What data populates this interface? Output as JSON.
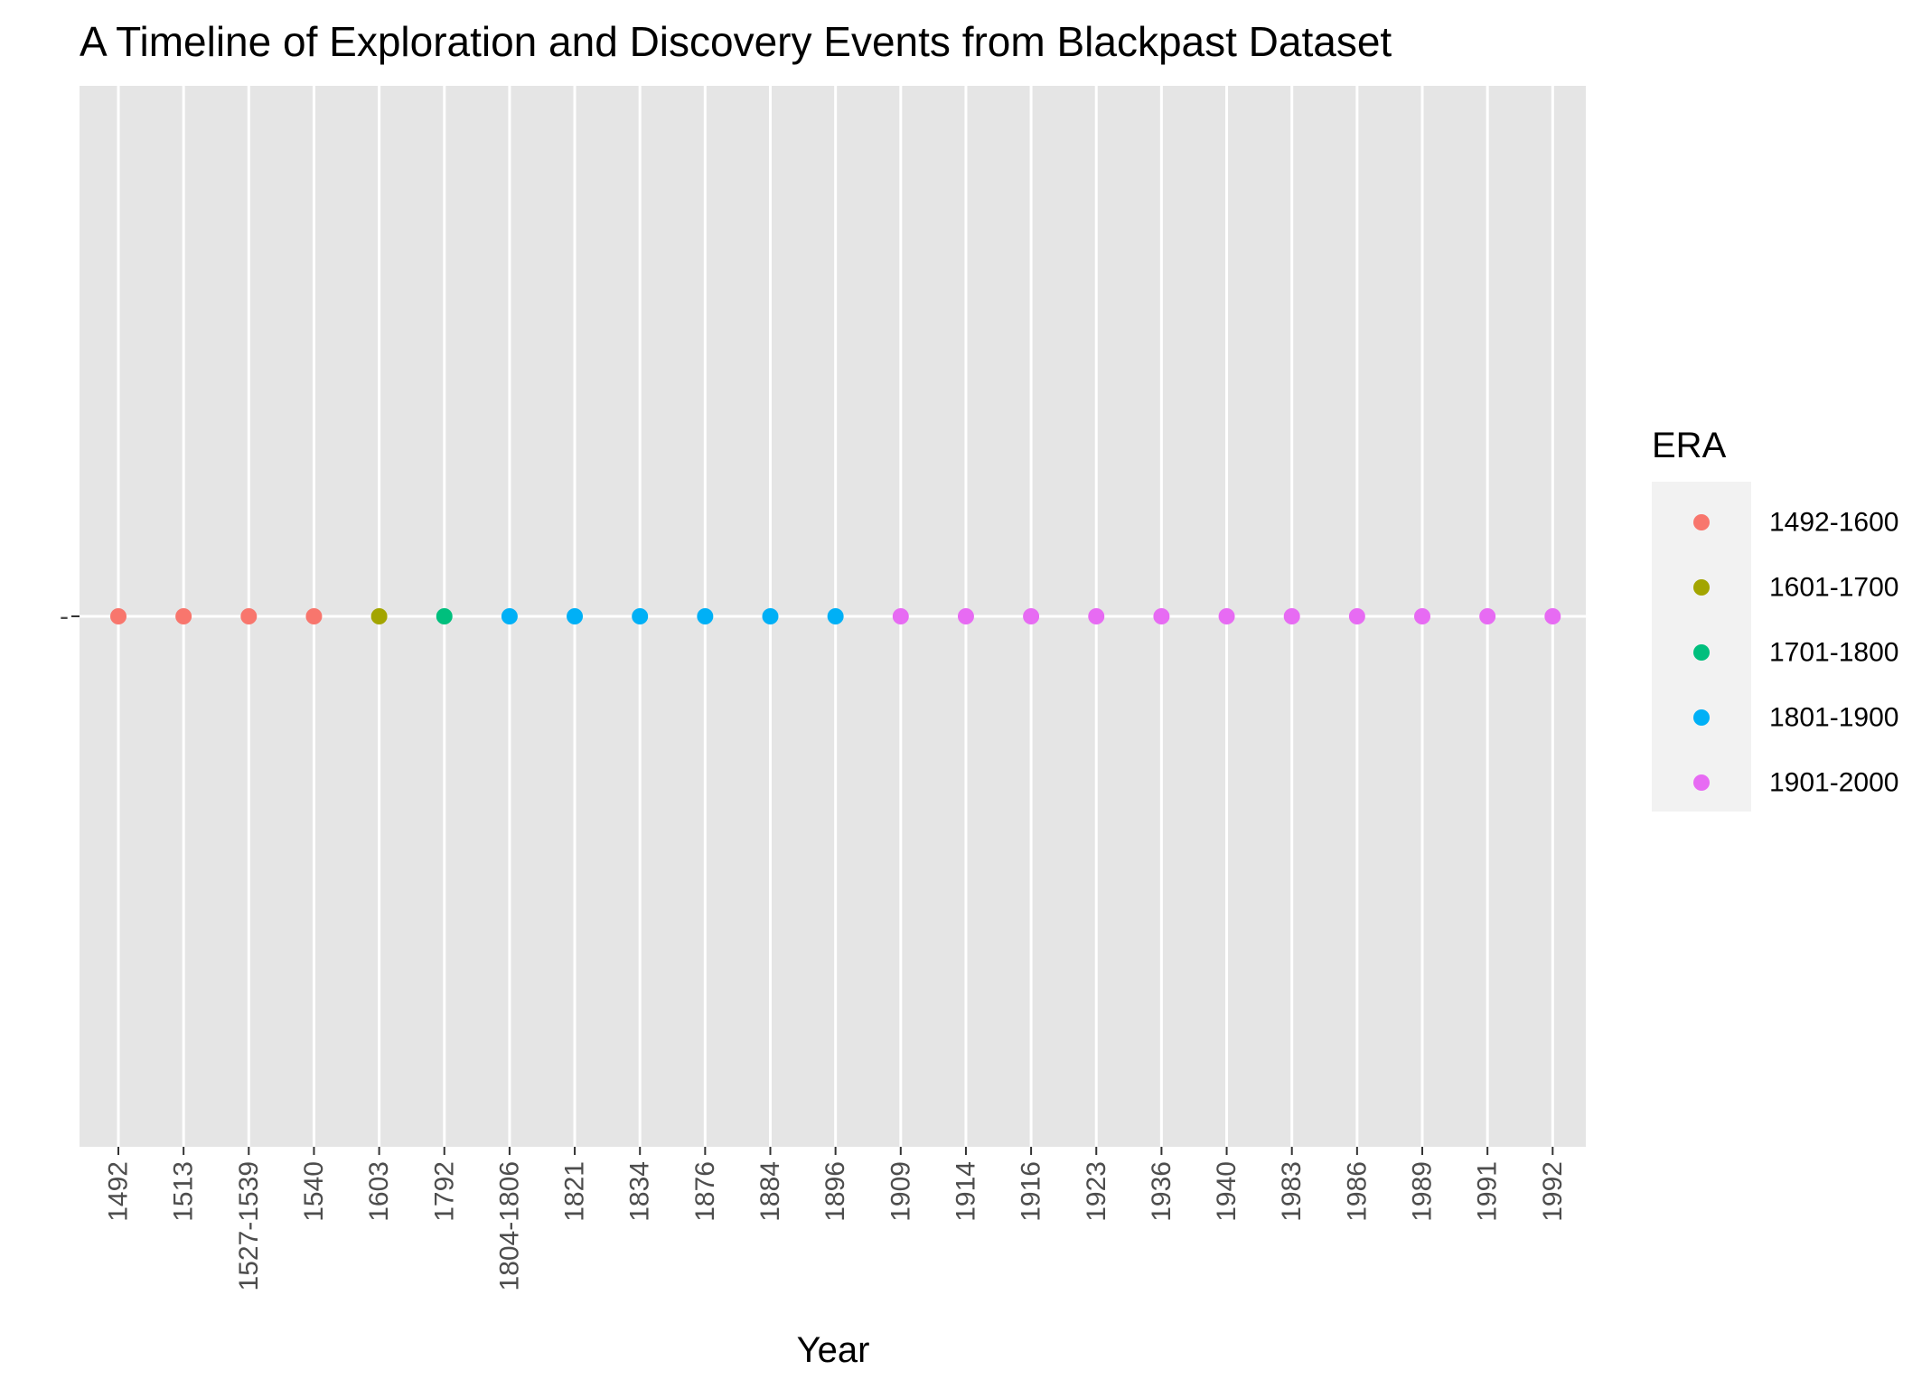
{
  "chart_data": {
    "type": "scatter",
    "title": "A Timeline of Exploration and Discovery Events from Blackpast Dataset",
    "xlabel": "Year",
    "ylabel": "",
    "categories": [
      "1492",
      "1513",
      "1527-1539",
      "1540",
      "1603",
      "1792",
      "1804-1806",
      "1821",
      "1834",
      "1876",
      "1884",
      "1896",
      "1909",
      "1914",
      "1916",
      "1923",
      "1936",
      "1940",
      "1983",
      "1986",
      "1989",
      "1991",
      "1992"
    ],
    "era": [
      "1492-1600",
      "1492-1600",
      "1492-1600",
      "1492-1600",
      "1601-1700",
      "1701-1800",
      "1801-1900",
      "1801-1900",
      "1801-1900",
      "1801-1900",
      "1801-1900",
      "1801-1900",
      "1901-2000",
      "1901-2000",
      "1901-2000",
      "1901-2000",
      "1901-2000",
      "1901-2000",
      "1901-2000",
      "1901-2000",
      "1901-2000",
      "1901-2000",
      "1901-2000"
    ],
    "y_tick_labels": [
      "-"
    ],
    "legend": {
      "title": "ERA",
      "placement": "right",
      "entries": [
        {
          "label": "1492-1600",
          "color": "#F8766D"
        },
        {
          "label": "1601-1700",
          "color": "#A3A500"
        },
        {
          "label": "1701-1800",
          "color": "#00BF7D"
        },
        {
          "label": "1801-1900",
          "color": "#00B0F6"
        },
        {
          "label": "1901-2000",
          "color": "#E76BF3"
        }
      ]
    },
    "grid": true,
    "panel_color": "#E5E5E5",
    "grid_color": "#FFFFFF"
  }
}
